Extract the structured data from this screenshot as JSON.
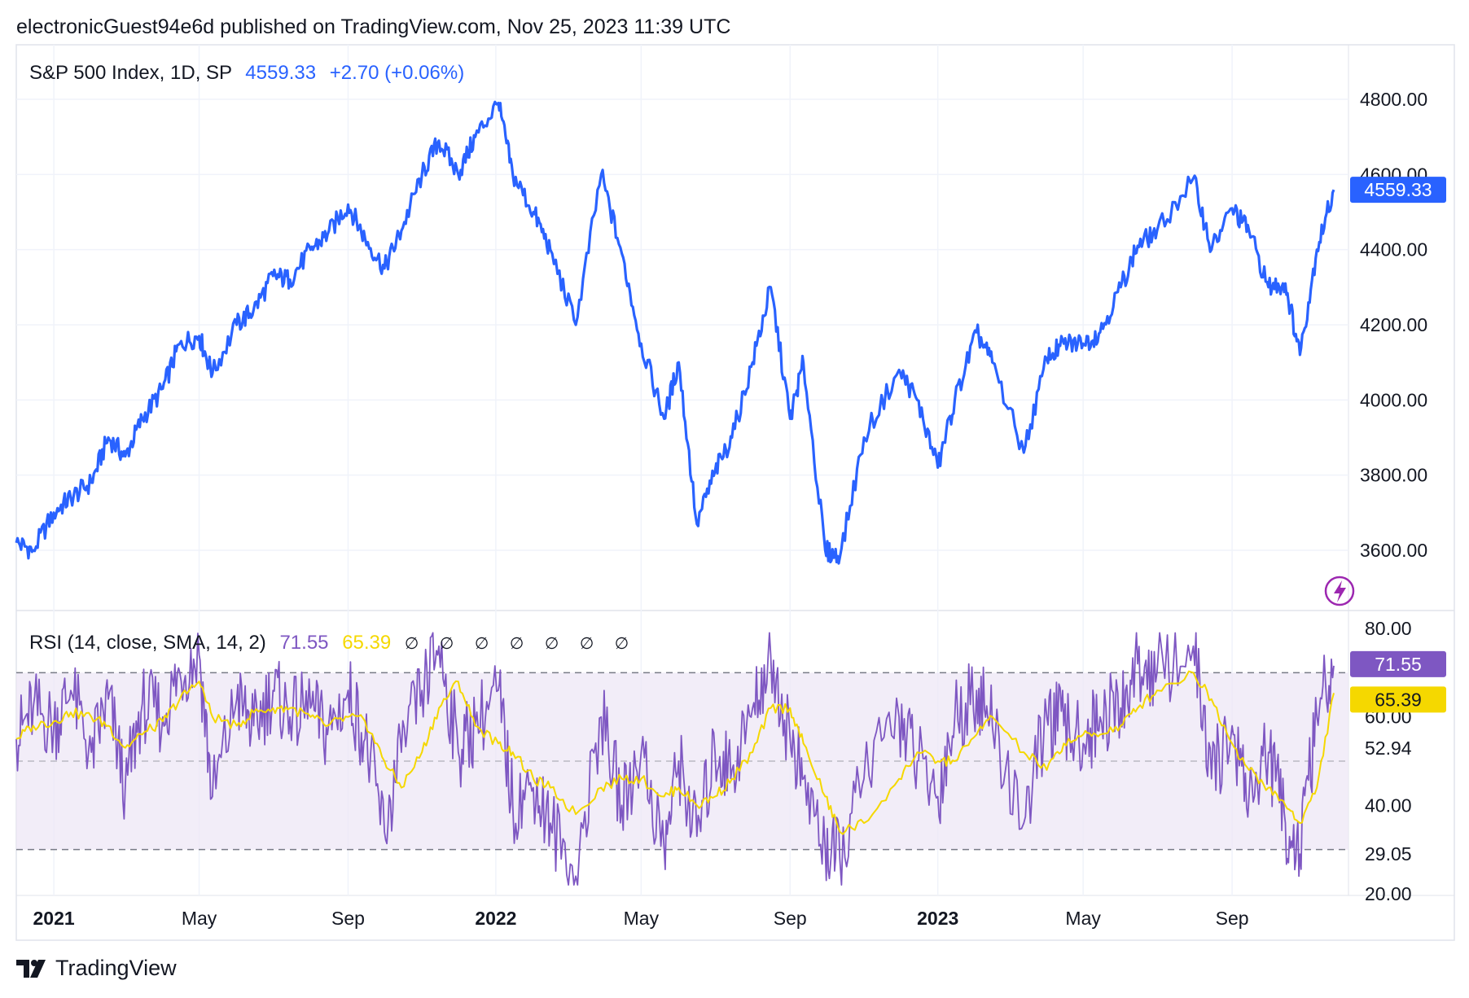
{
  "header": {
    "publisher_line": "electronicGuest94e6d published on TradingView.com, Nov 25, 2023 11:39 UTC"
  },
  "main_legend": {
    "title": "S&P 500 Index, 1D, SP",
    "last": "4559.33",
    "change": "+2.70 (+0.06%)"
  },
  "rsi_legend": {
    "title": "RSI (14, close, SMA, 14, 2)",
    "rsi": "71.55",
    "ma": "65.39",
    "na": "∅ ∅ ∅ ∅ ∅ ∅ ∅"
  },
  "footer": {
    "brand": "TradingView"
  },
  "colors": {
    "price_line": "#2962ff",
    "rsi_line": "#7e57c2",
    "rsi_ma": "#f5d800",
    "rsi_band": "#ede7f6",
    "grid": "#f0f3fa",
    "badge_price": "#2962ff",
    "badge_rsi": "#7e57c2",
    "badge_ma": "#f5d800"
  },
  "chart_data": [
    {
      "type": "line",
      "title": "S&P 500 Index, 1D, SP",
      "series": [
        {
          "name": "S&P 500",
          "x": [
            "2020-12-01",
            "2020-12-15",
            "2021-01-01",
            "2021-01-15",
            "2021-02-01",
            "2021-02-15",
            "2021-03-01",
            "2021-03-15",
            "2021-04-01",
            "2021-04-15",
            "2021-05-01",
            "2021-05-12",
            "2021-06-01",
            "2021-06-15",
            "2021-07-01",
            "2021-07-15",
            "2021-08-01",
            "2021-08-15",
            "2021-09-01",
            "2021-09-15",
            "2021-10-01",
            "2021-10-15",
            "2021-11-01",
            "2021-11-15",
            "2021-12-01",
            "2021-12-15",
            "2022-01-03",
            "2022-01-15",
            "2022-02-01",
            "2022-02-15",
            "2022-03-08",
            "2022-03-29",
            "2022-04-15",
            "2022-05-01",
            "2022-05-20",
            "2022-06-01",
            "2022-06-16",
            "2022-07-01",
            "2022-07-15",
            "2022-08-01",
            "2022-08-16",
            "2022-09-01",
            "2022-09-12",
            "2022-09-30",
            "2022-10-12",
            "2022-11-01",
            "2022-11-30",
            "2022-12-15",
            "2023-01-01",
            "2023-01-15",
            "2023-02-02",
            "2023-02-15",
            "2023-03-13",
            "2023-04-01",
            "2023-04-15",
            "2023-05-01",
            "2023-05-15",
            "2023-06-01",
            "2023-06-15",
            "2023-07-01",
            "2023-07-31",
            "2023-08-15",
            "2023-09-01",
            "2023-09-15",
            "2023-10-01",
            "2023-10-15",
            "2023-10-27",
            "2023-11-10",
            "2023-11-24"
          ],
          "values": [
            3620,
            3600,
            3700,
            3740,
            3780,
            3900,
            3850,
            3950,
            4030,
            4150,
            4170,
            4070,
            4200,
            4240,
            4330,
            4320,
            4400,
            4440,
            4520,
            4430,
            4350,
            4450,
            4600,
            4690,
            4600,
            4700,
            4790,
            4600,
            4500,
            4400,
            4200,
            4600,
            4390,
            4150,
            3950,
            4100,
            3670,
            3810,
            3900,
            4100,
            4300,
            3950,
            4100,
            3600,
            3580,
            3900,
            4080,
            4000,
            3820,
            4000,
            4180,
            4100,
            3860,
            4110,
            4150,
            4150,
            4180,
            4300,
            4410,
            4450,
            4590,
            4400,
            4510,
            4450,
            4300,
            4310,
            4120,
            4400,
            4559.33
          ]
        }
      ],
      "xlabel": "",
      "ylabel": "",
      "ylim": [
        3450,
        4880
      ],
      "y_ticks": [
        "4800.00",
        "4600.00",
        "4400.00",
        "4200.00",
        "4000.00",
        "3800.00",
        "3600.00"
      ],
      "x_ticks": [
        {
          "label": "2021",
          "bold": true,
          "x": "2021-01-01"
        },
        {
          "label": "May",
          "bold": false,
          "x": "2021-05-01"
        },
        {
          "label": "Sep",
          "bold": false,
          "x": "2021-09-01"
        },
        {
          "label": "2022",
          "bold": true,
          "x": "2022-01-01"
        },
        {
          "label": "May",
          "bold": false,
          "x": "2022-05-01"
        },
        {
          "label": "Sep",
          "bold": false,
          "x": "2022-09-01"
        },
        {
          "label": "2023",
          "bold": true,
          "x": "2023-01-01"
        },
        {
          "label": "May",
          "bold": false,
          "x": "2023-05-01"
        },
        {
          "label": "Sep",
          "bold": false,
          "x": "2023-09-01"
        }
      ],
      "last_value_label": "4559.33"
    },
    {
      "type": "line",
      "title": "RSI (14, close, SMA, 14, 2)",
      "series": [
        {
          "name": "RSI",
          "x": [
            "2020-12-01",
            "2020-12-15",
            "2021-01-01",
            "2021-01-15",
            "2021-02-01",
            "2021-02-15",
            "2021-03-01",
            "2021-03-15",
            "2021-04-01",
            "2021-04-15",
            "2021-05-01",
            "2021-05-12",
            "2021-06-01",
            "2021-06-15",
            "2021-07-01",
            "2021-07-15",
            "2021-08-01",
            "2021-08-15",
            "2021-09-01",
            "2021-09-15",
            "2021-10-01",
            "2021-10-15",
            "2021-11-01",
            "2021-11-15",
            "2021-12-01",
            "2021-12-15",
            "2022-01-03",
            "2022-01-15",
            "2022-02-01",
            "2022-02-15",
            "2022-03-08",
            "2022-03-29",
            "2022-04-15",
            "2022-05-01",
            "2022-05-20",
            "2022-06-01",
            "2022-06-16",
            "2022-07-01",
            "2022-07-15",
            "2022-08-01",
            "2022-08-16",
            "2022-09-01",
            "2022-09-12",
            "2022-09-30",
            "2022-10-12",
            "2022-11-01",
            "2022-11-30",
            "2022-12-15",
            "2023-01-01",
            "2023-01-15",
            "2023-02-02",
            "2023-02-15",
            "2023-03-13",
            "2023-04-01",
            "2023-04-15",
            "2023-05-01",
            "2023-05-15",
            "2023-06-01",
            "2023-06-15",
            "2023-07-01",
            "2023-07-31",
            "2023-08-15",
            "2023-09-01",
            "2023-09-15",
            "2023-10-01",
            "2023-10-15",
            "2023-10-27",
            "2023-11-10",
            "2023-11-24"
          ],
          "values": [
            55,
            62,
            58,
            66,
            52,
            64,
            44,
            63,
            60,
            70,
            74,
            42,
            64,
            58,
            66,
            60,
            62,
            56,
            66,
            55,
            34,
            52,
            66,
            76,
            52,
            58,
            66,
            40,
            44,
            36,
            24,
            60,
            40,
            52,
            30,
            50,
            33,
            52,
            48,
            62,
            74,
            55,
            46,
            30,
            28,
            46,
            60,
            50,
            42,
            60,
            66,
            58,
            36,
            60,
            58,
            54,
            60,
            62,
            72,
            70,
            76,
            46,
            58,
            42,
            52,
            36,
            29,
            60,
            71.55
          ]
        },
        {
          "name": "RSI-based MA",
          "x": [
            "2020-12-01",
            "2020-12-15",
            "2021-01-01",
            "2021-01-15",
            "2021-02-01",
            "2021-02-15",
            "2021-03-01",
            "2021-03-15",
            "2021-04-01",
            "2021-04-15",
            "2021-05-01",
            "2021-05-12",
            "2021-06-01",
            "2021-06-15",
            "2021-07-01",
            "2021-07-15",
            "2021-08-01",
            "2021-08-15",
            "2021-09-01",
            "2021-09-15",
            "2021-10-01",
            "2021-10-15",
            "2021-11-01",
            "2021-11-15",
            "2021-12-01",
            "2021-12-15",
            "2022-01-03",
            "2022-01-15",
            "2022-02-01",
            "2022-02-15",
            "2022-03-08",
            "2022-03-29",
            "2022-04-15",
            "2022-05-01",
            "2022-05-20",
            "2022-06-01",
            "2022-06-16",
            "2022-07-01",
            "2022-07-15",
            "2022-08-01",
            "2022-08-16",
            "2022-09-01",
            "2022-09-12",
            "2022-09-30",
            "2022-10-12",
            "2022-11-01",
            "2022-11-30",
            "2022-12-15",
            "2023-01-01",
            "2023-01-15",
            "2023-02-02",
            "2023-02-15",
            "2023-03-13",
            "2023-04-01",
            "2023-04-15",
            "2023-05-01",
            "2023-05-15",
            "2023-06-01",
            "2023-06-15",
            "2023-07-01",
            "2023-07-31",
            "2023-08-15",
            "2023-09-01",
            "2023-09-15",
            "2023-10-01",
            "2023-10-15",
            "2023-10-27",
            "2023-11-10",
            "2023-11-24"
          ],
          "values": [
            55,
            58,
            59,
            61,
            60,
            58,
            53,
            56,
            59,
            64,
            68,
            60,
            58,
            61,
            62,
            62,
            60,
            58,
            60,
            59,
            50,
            44,
            52,
            62,
            68,
            58,
            54,
            52,
            46,
            44,
            38,
            44,
            46,
            46,
            42,
            44,
            40,
            42,
            46,
            52,
            62,
            62,
            54,
            42,
            34,
            36,
            46,
            52,
            50,
            50,
            56,
            60,
            52,
            48,
            54,
            56,
            56,
            58,
            62,
            66,
            70,
            64,
            54,
            48,
            44,
            40,
            36,
            44,
            65.39
          ]
        }
      ],
      "ylim": [
        20,
        80
      ],
      "y_ticks": [
        "80.00",
        "60.00",
        "52.94",
        "40.00",
        "29.05",
        "20.00"
      ],
      "bands": {
        "upper": 70,
        "middle": 50,
        "lower": 30
      },
      "last_value_labels": {
        "rsi": "71.55",
        "ma": "65.39"
      }
    }
  ]
}
